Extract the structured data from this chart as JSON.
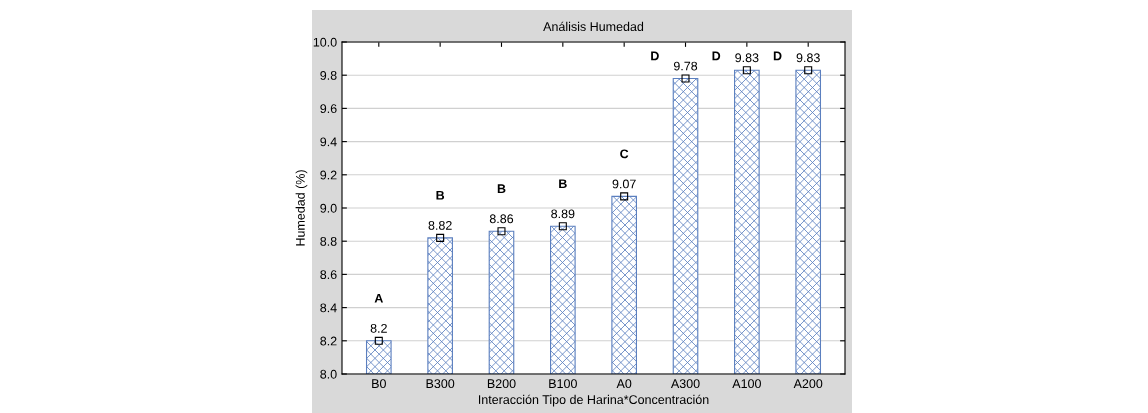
{
  "chart_data": {
    "type": "bar",
    "title": "Análisis Humedad",
    "xlabel": "Interacción Tipo de Harina*Concentración",
    "ylabel": "Humedad (%)",
    "categories": [
      "B0",
      "B300",
      "B200",
      "B100",
      "A0",
      "A300",
      "A100",
      "A200"
    ],
    "series": [
      {
        "color": "#5b7fbf",
        "values": [
          8.2,
          8.82,
          8.86,
          8.89,
          9.07,
          9.78,
          9.83,
          9.83
        ],
        "value_labels": [
          "8.2",
          "8.82",
          "8.86",
          "8.89",
          "9.07",
          "9.78",
          "9.83",
          "9.83"
        ]
      },
      {
        "type": "scatter",
        "color": "#000000",
        "marker": "square",
        "x": [
          "B0",
          "B300",
          "B200",
          "B100",
          "A0",
          "A300",
          "A100",
          "A200"
        ],
        "values": [
          8.2,
          8.82,
          8.86,
          8.89,
          9.07,
          9.78,
          9.83,
          9.83
        ]
      }
    ],
    "ylim": [
      8.0,
      10.0
    ],
    "yticks": [
      {
        "value": 8.0,
        "label": "8.0"
      },
      {
        "value": 8.2,
        "label": "8.2"
      },
      {
        "value": 8.4,
        "label": "8.4"
      },
      {
        "value": 8.6,
        "label": "8.6"
      },
      {
        "value": 8.8,
        "label": "8.8"
      },
      {
        "value": 9.0,
        "label": "9.0"
      },
      {
        "value": 9.2,
        "label": "9.2"
      },
      {
        "value": 9.4,
        "label": "9.4"
      },
      {
        "value": 9.6,
        "label": "9.6"
      },
      {
        "value": 9.8,
        "label": "9.8"
      },
      {
        "value": 10.0,
        "label": "10.0"
      }
    ],
    "grid": "y",
    "annotations": [
      "A",
      "B",
      "B",
      "B",
      "C",
      "D",
      "D",
      "D"
    ]
  }
}
